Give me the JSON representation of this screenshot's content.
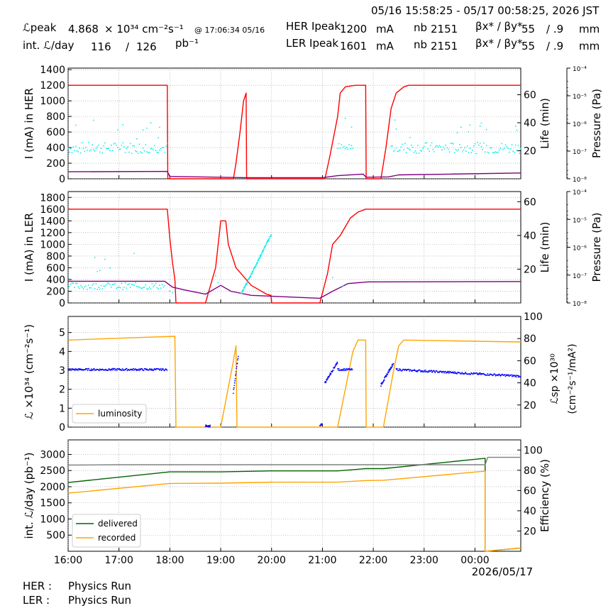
{
  "header": {
    "time_range": "05/16 15:58:25 - 05/17 00:58:25, 2026 JST",
    "lpeak_label": "ℒpeak",
    "lpeak_value": "4.868",
    "lpeak_unit": "× 10³⁴ cm⁻²s⁻¹",
    "lpeak_at": "@ 17:06:34 05/16",
    "intl_label": "int. ℒ/day",
    "intl_recorded": "116",
    "intl_slash": "/",
    "intl_delivered": "126",
    "intl_unit": "pb⁻¹",
    "her_label": "HER Ipeak",
    "her_ipeak": "1200",
    "ler_label": "LER Ipeak",
    "ler_ipeak": "1601",
    "ma_unit": "mA",
    "nb_label": "nb",
    "her_nb": "2151",
    "ler_nb": "2151",
    "beta_label": "βx* / βy*",
    "her_beta_x": "55",
    "her_beta_y": "/ .9",
    "ler_beta_x": "55",
    "ler_beta_y": "/ .9",
    "mm_unit": "mm"
  },
  "footer": {
    "her_label": "HER :",
    "her_status": "Physics Run",
    "ler_label": "LER :",
    "ler_status": "Physics Run"
  },
  "chart_data": [
    {
      "type": "line",
      "panel": "HER",
      "x_ticks": [
        "16:00",
        "17:00",
        "18:00",
        "19:00",
        "20:00",
        "21:00",
        "22:00",
        "23:00",
        "00:00"
      ],
      "ylabel": "I (mA) in HER",
      "ylim": [
        0,
        1420
      ],
      "yticks": [
        0,
        200,
        400,
        600,
        800,
        1000,
        1200,
        1400
      ],
      "y2label": "Life (min)",
      "y2lim": [
        0,
        79
      ],
      "y2ticks": [
        20,
        40,
        60
      ],
      "y3label": "Pressure (Pa)",
      "y3ticks": [
        "10⁻⁴",
        "10⁻⁵",
        "10⁻⁶",
        "10⁻⁷",
        "10⁻⁸"
      ],
      "grid": true,
      "colors": {
        "current": "#ff0000",
        "pressure": "#800080",
        "life": "#00eeee"
      },
      "series": [
        {
          "key": "current",
          "points": [
            [
              16.0,
              1200
            ],
            [
              17.95,
              1200
            ],
            [
              17.96,
              0
            ],
            [
              19.25,
              0
            ],
            [
              19.3,
              200
            ],
            [
              19.38,
              600
            ],
            [
              19.45,
              1000
            ],
            [
              19.5,
              1100
            ],
            [
              19.51,
              0
            ],
            [
              21.05,
              0
            ],
            [
              21.15,
              300
            ],
            [
              21.3,
              800
            ],
            [
              21.35,
              1100
            ],
            [
              21.45,
              1180
            ],
            [
              21.65,
              1200
            ],
            [
              21.85,
              1200
            ],
            [
              21.86,
              0
            ],
            [
              22.15,
              0
            ],
            [
              22.25,
              400
            ],
            [
              22.35,
              900
            ],
            [
              22.45,
              1100
            ],
            [
              22.6,
              1180
            ],
            [
              22.7,
              1200
            ],
            [
              24.9,
              1200
            ]
          ]
        },
        {
          "key": "pressure",
          "points": [
            [
              16.0,
              90
            ],
            [
              17.95,
              95
            ],
            [
              18.0,
              30
            ],
            [
              19.0,
              20
            ],
            [
              19.5,
              15
            ],
            [
              21.0,
              15
            ],
            [
              21.3,
              40
            ],
            [
              21.8,
              60
            ],
            [
              21.86,
              20
            ],
            [
              22.3,
              25
            ],
            [
              22.5,
              50
            ],
            [
              23.5,
              60
            ],
            [
              24.9,
              75
            ]
          ]
        },
        {
          "key": "life",
          "segments": [
            [
              16.0,
              17.95
            ],
            [
              21.3,
              21.6
            ],
            [
              22.35,
              24.9
            ]
          ],
          "base": 22,
          "spread": 4
        }
      ]
    },
    {
      "type": "line",
      "panel": "LER",
      "x_ticks": [
        "16:00",
        "17:00",
        "18:00",
        "19:00",
        "20:00",
        "21:00",
        "22:00",
        "23:00",
        "00:00"
      ],
      "ylabel": "I (mA) in LER",
      "ylim": [
        0,
        1900
      ],
      "yticks": [
        0,
        200,
        400,
        600,
        800,
        1000,
        1200,
        1400,
        1600,
        1800
      ],
      "y2label": "Life (min)",
      "y2lim": [
        0,
        66
      ],
      "y2ticks": [
        20,
        40,
        60
      ],
      "y3label": "Pressure (Pa)",
      "y3ticks": [
        "10⁻⁴",
        "10⁻⁵",
        "10⁻⁶",
        "10⁻⁷",
        "10⁻⁸"
      ],
      "grid": true,
      "colors": {
        "current": "#ff0000",
        "pressure": "#800080",
        "life": "#00eeee"
      },
      "series": [
        {
          "key": "current",
          "points": [
            [
              16.0,
              1600
            ],
            [
              17.95,
              1600
            ],
            [
              18.0,
              1100
            ],
            [
              18.05,
              700
            ],
            [
              18.1,
              400
            ],
            [
              18.12,
              0
            ],
            [
              18.7,
              0
            ],
            [
              18.9,
              600
            ],
            [
              18.95,
              1000
            ],
            [
              19.0,
              1400
            ],
            [
              19.1,
              1400
            ],
            [
              19.15,
              1000
            ],
            [
              19.3,
              600
            ],
            [
              19.6,
              300
            ],
            [
              19.9,
              150
            ],
            [
              19.99,
              130
            ],
            [
              20.0,
              0
            ],
            [
              20.95,
              0
            ],
            [
              21.1,
              500
            ],
            [
              21.2,
              1000
            ],
            [
              21.35,
              1150
            ],
            [
              21.45,
              1300
            ],
            [
              21.55,
              1450
            ],
            [
              21.7,
              1550
            ],
            [
              21.85,
              1600
            ],
            [
              24.9,
              1600
            ]
          ]
        },
        {
          "key": "pressure",
          "points": [
            [
              16.0,
              370
            ],
            [
              17.9,
              370
            ],
            [
              18.05,
              270
            ],
            [
              18.3,
              220
            ],
            [
              18.7,
              150
            ],
            [
              19.0,
              300
            ],
            [
              19.2,
              200
            ],
            [
              19.6,
              130
            ],
            [
              20.95,
              80
            ],
            [
              21.2,
              200
            ],
            [
              21.5,
              330
            ],
            [
              21.9,
              360
            ],
            [
              24.9,
              365
            ]
          ]
        },
        {
          "key": "life",
          "segments": [
            [
              16.0,
              17.9
            ]
          ],
          "ramp": [
            [
              19.4,
              5
            ],
            [
              20.0,
              41
            ]
          ],
          "base": 10,
          "spread": 2
        }
      ]
    },
    {
      "type": "scatter",
      "panel": "Luminosity",
      "x_ticks": [
        "16:00",
        "17:00",
        "18:00",
        "19:00",
        "20:00",
        "21:00",
        "22:00",
        "23:00",
        "00:00"
      ],
      "ylabel": "ℒ ×10³⁴ (cm⁻²s⁻¹)",
      "ylim": [
        0,
        5.85
      ],
      "yticks": [
        0,
        1,
        2,
        3,
        4,
        5
      ],
      "y2label_line1": "ℒsp ×10³⁰",
      "y2label_line2": "(cm⁻²s⁻¹/mA²)",
      "y2lim": [
        0,
        100
      ],
      "y2ticks": [
        20,
        40,
        60,
        80,
        100
      ],
      "legend": [
        "luminosity"
      ],
      "legend_position": "lower-left",
      "grid": true,
      "colors": {
        "luminosity": "#ffa500",
        "specific": "#0000ff"
      },
      "series": [
        {
          "name": "luminosity",
          "points": [
            [
              16.0,
              4.6
            ],
            [
              17.0,
              4.7
            ],
            [
              18.1,
              4.8
            ],
            [
              18.12,
              0
            ],
            [
              19.0,
              0
            ],
            [
              19.25,
              3.5
            ],
            [
              19.3,
              4.3
            ],
            [
              19.32,
              0
            ],
            [
              21.3,
              0
            ],
            [
              21.45,
              2.0
            ],
            [
              21.6,
              4.0
            ],
            [
              21.7,
              4.6
            ],
            [
              21.85,
              4.6
            ],
            [
              21.86,
              0
            ],
            [
              22.2,
              0
            ],
            [
              22.4,
              3.0
            ],
            [
              22.5,
              4.3
            ],
            [
              22.6,
              4.6
            ],
            [
              24.9,
              4.5
            ]
          ]
        },
        {
          "name": "specific",
          "segments": [
            [
              16.0,
              17.95
            ],
            [
              21.3,
              21.6
            ],
            [
              22.45,
              24.9
            ]
          ],
          "base": 52,
          "fall": 46
        }
      ]
    },
    {
      "type": "line",
      "panel": "Integrated luminosity",
      "x_ticks": [
        "16:00",
        "17:00",
        "18:00",
        "19:00",
        "20:00",
        "21:00",
        "22:00",
        "23:00",
        "00:00"
      ],
      "xlabel_date": "2026/05/17",
      "ylabel": "int. ℒ/day (pb⁻¹)",
      "ylim": [
        0,
        3450
      ],
      "yticks": [
        500,
        1000,
        1500,
        2000,
        2500,
        3000
      ],
      "y2label": "Efficiency (%)",
      "y2lim": [
        0,
        110
      ],
      "y2ticks": [
        20,
        40,
        60,
        80,
        100
      ],
      "legend": [
        "delivered",
        "recorded"
      ],
      "legend_position": "lower-left",
      "grid": true,
      "colors": {
        "delivered": "#006400",
        "recorded": "#ffa500",
        "efficiency": "#808080"
      },
      "series": [
        {
          "name": "delivered",
          "points": [
            [
              16.0,
              2130
            ],
            [
              18.0,
              2460
            ],
            [
              19.0,
              2460
            ],
            [
              20.0,
              2490
            ],
            [
              21.3,
              2490
            ],
            [
              21.85,
              2560
            ],
            [
              22.2,
              2560
            ],
            [
              24.2,
              2880
            ],
            [
              24.2,
              0
            ],
            [
              24.9,
              100
            ]
          ]
        },
        {
          "name": "recorded",
          "points": [
            [
              16.0,
              1800
            ],
            [
              18.0,
              2100
            ],
            [
              19.0,
              2110
            ],
            [
              20.0,
              2140
            ],
            [
              21.3,
              2140
            ],
            [
              21.85,
              2190
            ],
            [
              22.2,
              2200
            ],
            [
              24.2,
              2480
            ],
            [
              24.2,
              0
            ],
            [
              24.9,
              100
            ]
          ]
        },
        {
          "name": "efficiency",
          "points": [
            [
              16.0,
              2670
            ],
            [
              17.0,
              2680
            ],
            [
              24.2,
              2680
            ],
            [
              24.25,
              2910
            ],
            [
              24.9,
              2910
            ]
          ]
        }
      ]
    }
  ]
}
